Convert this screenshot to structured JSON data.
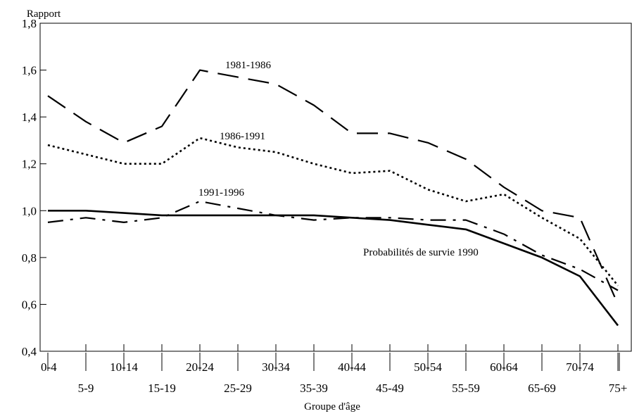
{
  "chart_data": {
    "type": "line",
    "xlabel": "Groupe d'âge",
    "ylabel": "Rapport",
    "ylim": [
      0.4,
      1.8
    ],
    "yticks": [
      0.4,
      0.6,
      0.8,
      1.0,
      1.2,
      1.4,
      1.6,
      1.8
    ],
    "ytick_labels": [
      "0,4",
      "0,6",
      "0,8",
      "1,0",
      "1,2",
      "1,4",
      "1,6",
      "1,8"
    ],
    "categories": [
      "0-4",
      "5-9",
      "10-14",
      "15-19",
      "20-24",
      "25-29",
      "30-34",
      "35-39",
      "40-44",
      "45-49",
      "50-54",
      "55-59",
      "60-64",
      "65-69",
      "70-74",
      "75+"
    ],
    "grid": false,
    "legend": "none (series labelled directly on lines)",
    "series": [
      {
        "name": "1981-1986",
        "style": "dashed",
        "values": [
          1.49,
          1.38,
          1.29,
          1.36,
          1.6,
          1.57,
          1.54,
          1.45,
          1.33,
          1.33,
          1.29,
          1.22,
          1.1,
          1.0,
          0.97,
          0.6
        ]
      },
      {
        "name": "1986-1991",
        "style": "dotted",
        "values": [
          1.28,
          1.24,
          1.2,
          1.2,
          1.31,
          1.27,
          1.25,
          1.2,
          1.16,
          1.17,
          1.09,
          1.04,
          1.07,
          0.97,
          0.88,
          0.68
        ]
      },
      {
        "name": "1991-1996",
        "style": "dash-dot",
        "values": [
          0.95,
          0.97,
          0.95,
          0.97,
          1.04,
          1.01,
          0.98,
          0.96,
          0.97,
          0.97,
          0.96,
          0.96,
          0.9,
          0.81,
          0.75,
          0.66
        ]
      },
      {
        "name": "Probabilités de survie 1990",
        "style": "solid",
        "values": [
          1.0,
          1.0,
          0.99,
          0.98,
          0.98,
          0.98,
          0.98,
          0.98,
          0.97,
          0.96,
          0.94,
          0.92,
          0.86,
          0.8,
          0.72,
          0.51
        ]
      }
    ]
  }
}
